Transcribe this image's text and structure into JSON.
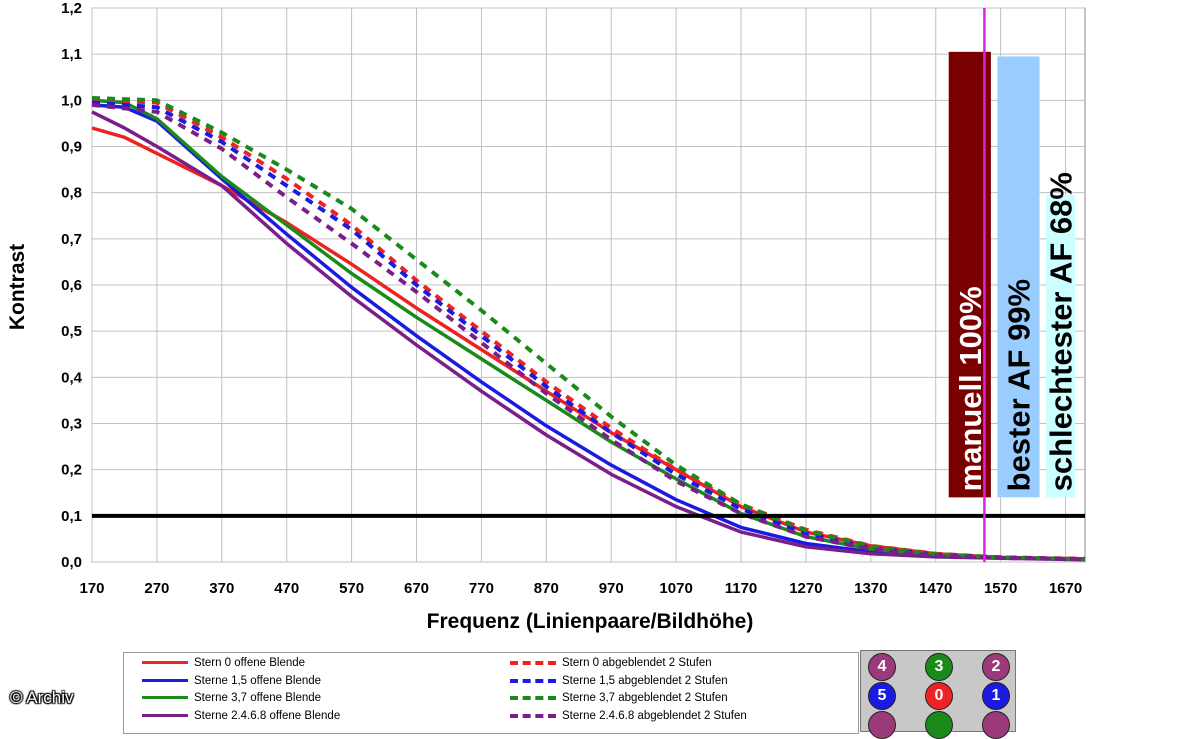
{
  "chart_data": {
    "type": "line",
    "xlabel": "Frequenz (Linienpaare/Bildhöhe)",
    "ylabel": "Kontrast",
    "xlim": [
      170,
      1700
    ],
    "ylim": [
      0,
      1.2
    ],
    "x_ticks": [
      "170",
      "270",
      "370",
      "470",
      "570",
      "670",
      "770",
      "870",
      "970",
      "1070",
      "1170",
      "1270",
      "1370",
      "1470",
      "1570",
      "1670"
    ],
    "y_ticks": [
      "0,0",
      "0,1",
      "0,2",
      "0,3",
      "0,4",
      "0,5",
      "0,6",
      "0,7",
      "0,8",
      "0,9",
      "1,0",
      "1,1",
      "1,2"
    ],
    "grid": true,
    "threshold": {
      "y": 0.1,
      "color": "#000000"
    },
    "vertical_marker": {
      "x": 1545,
      "color": "#e020e0"
    },
    "series": [
      {
        "name": "Stern 0 offene Blende",
        "color": "#ee2222",
        "dash": false,
        "points": [
          [
            170,
            0.94
          ],
          [
            220,
            0.92
          ],
          [
            270,
            0.885
          ],
          [
            370,
            0.815
          ],
          [
            470,
            0.735
          ],
          [
            570,
            0.645
          ],
          [
            670,
            0.55
          ],
          [
            770,
            0.46
          ],
          [
            870,
            0.37
          ],
          [
            970,
            0.28
          ],
          [
            1070,
            0.2
          ],
          [
            1170,
            0.12
          ],
          [
            1270,
            0.065
          ],
          [
            1370,
            0.035
          ],
          [
            1470,
            0.018
          ],
          [
            1570,
            0.01
          ],
          [
            1700,
            0.007
          ]
        ]
      },
      {
        "name": "Sterne 1,5 offene Blende",
        "color": "#1a1ae0",
        "dash": false,
        "points": [
          [
            170,
            0.99
          ],
          [
            220,
            0.985
          ],
          [
            270,
            0.955
          ],
          [
            370,
            0.83
          ],
          [
            470,
            0.71
          ],
          [
            570,
            0.595
          ],
          [
            670,
            0.49
          ],
          [
            770,
            0.39
          ],
          [
            870,
            0.295
          ],
          [
            970,
            0.21
          ],
          [
            1070,
            0.135
          ],
          [
            1170,
            0.075
          ],
          [
            1270,
            0.04
          ],
          [
            1370,
            0.022
          ],
          [
            1470,
            0.013
          ],
          [
            1570,
            0.009
          ],
          [
            1700,
            0.006
          ]
        ]
      },
      {
        "name": "Sterne 3,7 offene Blende",
        "color": "#1a8a1a",
        "dash": false,
        "points": [
          [
            170,
            1.0
          ],
          [
            220,
            0.995
          ],
          [
            270,
            0.96
          ],
          [
            370,
            0.835
          ],
          [
            470,
            0.73
          ],
          [
            570,
            0.625
          ],
          [
            670,
            0.53
          ],
          [
            770,
            0.44
          ],
          [
            870,
            0.35
          ],
          [
            970,
            0.26
          ],
          [
            1070,
            0.18
          ],
          [
            1170,
            0.105
          ],
          [
            1270,
            0.055
          ],
          [
            1370,
            0.028
          ],
          [
            1470,
            0.015
          ],
          [
            1570,
            0.009
          ],
          [
            1700,
            0.006
          ]
        ]
      },
      {
        "name": "Sterne 2,4,6,8 offene Blende",
        "color": "#7a1f8a",
        "dash": false,
        "points": [
          [
            170,
            0.975
          ],
          [
            220,
            0.94
          ],
          [
            270,
            0.9
          ],
          [
            370,
            0.815
          ],
          [
            470,
            0.69
          ],
          [
            570,
            0.575
          ],
          [
            670,
            0.47
          ],
          [
            770,
            0.37
          ],
          [
            870,
            0.275
          ],
          [
            970,
            0.19
          ],
          [
            1070,
            0.12
          ],
          [
            1170,
            0.065
          ],
          [
            1270,
            0.033
          ],
          [
            1370,
            0.018
          ],
          [
            1470,
            0.011
          ],
          [
            1570,
            0.008
          ],
          [
            1700,
            0.005
          ]
        ]
      },
      {
        "name": "Stern 0 abgeblendet 2 Stufen",
        "color": "#ee2222",
        "dash": true,
        "points": [
          [
            170,
            1.0
          ],
          [
            270,
            0.995
          ],
          [
            370,
            0.92
          ],
          [
            470,
            0.83
          ],
          [
            570,
            0.73
          ],
          [
            670,
            0.61
          ],
          [
            770,
            0.5
          ],
          [
            870,
            0.39
          ],
          [
            970,
            0.29
          ],
          [
            1070,
            0.2
          ],
          [
            1170,
            0.125
          ],
          [
            1270,
            0.07
          ],
          [
            1370,
            0.035
          ],
          [
            1470,
            0.018
          ],
          [
            1570,
            0.01
          ],
          [
            1700,
            0.007
          ]
        ]
      },
      {
        "name": "Sterne 1,5 abgeblendet 2 Stufen",
        "color": "#1a1ae0",
        "dash": true,
        "points": [
          [
            170,
            0.995
          ],
          [
            270,
            0.985
          ],
          [
            370,
            0.91
          ],
          [
            470,
            0.815
          ],
          [
            570,
            0.72
          ],
          [
            670,
            0.6
          ],
          [
            770,
            0.49
          ],
          [
            870,
            0.38
          ],
          [
            970,
            0.28
          ],
          [
            1070,
            0.19
          ],
          [
            1170,
            0.115
          ],
          [
            1270,
            0.062
          ],
          [
            1370,
            0.031
          ],
          [
            1470,
            0.016
          ],
          [
            1570,
            0.01
          ],
          [
            1700,
            0.006
          ]
        ]
      },
      {
        "name": "Sterne 3,7 abgeblendet 2 Stufen",
        "color": "#1a8a1a",
        "dash": true,
        "points": [
          [
            170,
            1.005
          ],
          [
            270,
            1.0
          ],
          [
            370,
            0.93
          ],
          [
            470,
            0.85
          ],
          [
            570,
            0.765
          ],
          [
            670,
            0.655
          ],
          [
            770,
            0.545
          ],
          [
            870,
            0.43
          ],
          [
            970,
            0.315
          ],
          [
            1070,
            0.21
          ],
          [
            1170,
            0.125
          ],
          [
            1270,
            0.068
          ],
          [
            1370,
            0.034
          ],
          [
            1470,
            0.017
          ],
          [
            1570,
            0.01
          ],
          [
            1700,
            0.006
          ]
        ]
      },
      {
        "name": "Sterne 2,4,6,8 abgeblendet 2 Stufen",
        "color": "#7a1f8a",
        "dash": true,
        "points": [
          [
            170,
            0.99
          ],
          [
            270,
            0.975
          ],
          [
            370,
            0.895
          ],
          [
            470,
            0.79
          ],
          [
            570,
            0.69
          ],
          [
            670,
            0.585
          ],
          [
            770,
            0.475
          ],
          [
            870,
            0.365
          ],
          [
            970,
            0.265
          ],
          [
            1070,
            0.175
          ],
          [
            1170,
            0.105
          ],
          [
            1270,
            0.055
          ],
          [
            1370,
            0.028
          ],
          [
            1470,
            0.014
          ],
          [
            1570,
            0.009
          ],
          [
            1700,
            0.006
          ]
        ]
      }
    ],
    "bars": [
      {
        "label": "manuell 100%",
        "value": 1.105,
        "bottom": 0.14,
        "x_from": 1490,
        "x_to": 1555,
        "fill": "#7a0000",
        "text_color": "#ffffff"
      },
      {
        "label": "bester AF 99%",
        "value": 1.095,
        "bottom": 0.14,
        "x_from": 1565,
        "x_to": 1630,
        "fill": "#99ccff",
        "text_color": "#000000"
      },
      {
        "label": "schlechtester AF 68%",
        "value": 0.795,
        "bottom": 0.14,
        "x_from": 1640,
        "x_to": 1705,
        "fill": "#ccffff",
        "text_color": "#000000"
      }
    ]
  },
  "legend": [
    {
      "label": "Stern 0 offene Blende",
      "color": "#ee2222",
      "dash": false
    },
    {
      "label": "Sterne 1,5 offene Blende",
      "color": "#1a1ae0",
      "dash": false
    },
    {
      "label": "Sterne 3,7 offene Blende",
      "color": "#1a8a1a",
      "dash": false
    },
    {
      "label": "Sterne 2.4.6.8 offene Blende",
      "color": "#7a1f8a",
      "dash": false
    },
    {
      "label": "Stern 0 abgeblendet 2 Stufen",
      "color": "#ee2222",
      "dash": true
    },
    {
      "label": "Sterne 1,5 abgeblendet 2 Stufen",
      "color": "#1a1ae0",
      "dash": true
    },
    {
      "label": "Sterne 3,7 abgeblendet 2 Stufen",
      "color": "#1a8a1a",
      "dash": true
    },
    {
      "label": "Sterne 2.4.6.8 abgeblendet 2 Stufen",
      "color": "#7a1f8a",
      "dash": true
    }
  ],
  "markers": [
    {
      "label": "4",
      "color": "#9a3a7a"
    },
    {
      "label": "3",
      "color": "#1a8a1a"
    },
    {
      "label": "2",
      "color": "#9a3a7a"
    },
    {
      "label": "5",
      "color": "#1a1ae0"
    },
    {
      "label": "0",
      "color": "#ee2222"
    },
    {
      "label": "1",
      "color": "#1a1ae0"
    },
    {
      "label": "",
      "color": "#9a3a7a"
    },
    {
      "label": "",
      "color": "#1a8a1a"
    },
    {
      "label": "",
      "color": "#9a3a7a"
    }
  ],
  "copyright": "© Archiv"
}
